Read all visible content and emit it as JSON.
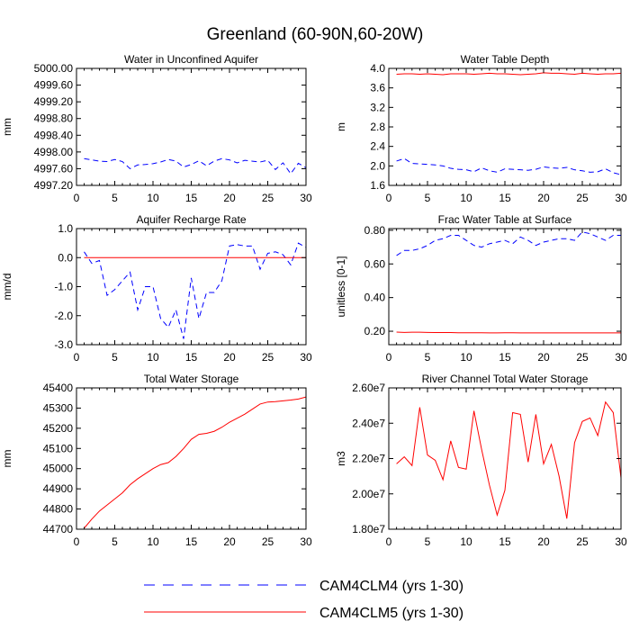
{
  "figure": {
    "title": "Greenland (60-90N,60-20W)"
  },
  "legend": {
    "entries": [
      {
        "label": "CAM4CLM4 (yrs 1-30)",
        "color": "#0000ff",
        "dash": true
      },
      {
        "label": "CAM4CLM5 (yrs 1-30)",
        "color": "#ff0000",
        "dash": false
      }
    ]
  },
  "chart_data": [
    {
      "type": "line",
      "title": "Water in Unconfined Aquifer",
      "ylabel": "mm",
      "xlim": [
        0,
        30
      ],
      "ylim": [
        4997.2,
        5000.0
      ],
      "xticks": [
        0,
        5,
        10,
        15,
        20,
        25,
        30
      ],
      "yticks": [
        4997.2,
        4997.6,
        4998.0,
        4998.4,
        4998.8,
        4999.2,
        4999.6,
        5000.0
      ],
      "ytick_labels": [
        "4997.20",
        "4997.60",
        "4998.00",
        "4998.40",
        "4998.80",
        "4999.20",
        "4999.60",
        "5000.00"
      ],
      "series": [
        {
          "name": "CAM4CLM4 (yrs 1-30)",
          "color": "#0000ff",
          "dash": true,
          "x": [
            1,
            2,
            3,
            4,
            5,
            6,
            7,
            8,
            9,
            10,
            11,
            12,
            13,
            14,
            15,
            16,
            17,
            18,
            19,
            20,
            21,
            22,
            23,
            24,
            25,
            26,
            27,
            28,
            29,
            30
          ],
          "values": [
            4997.84,
            4997.81,
            4997.78,
            4997.77,
            4997.82,
            4997.77,
            4997.6,
            4997.69,
            4997.7,
            4997.72,
            4997.76,
            4997.82,
            4997.78,
            4997.64,
            4997.7,
            4997.79,
            4997.67,
            4997.78,
            4997.84,
            4997.81,
            4997.74,
            4997.8,
            4997.78,
            4997.76,
            4997.8,
            4997.58,
            4997.74,
            4997.48,
            4997.73,
            4997.62
          ]
        }
      ]
    },
    {
      "type": "line",
      "title": "Water Table Depth",
      "ylabel": "m",
      "xlim": [
        0,
        30
      ],
      "ylim": [
        1.6,
        4.0
      ],
      "xticks": [
        0,
        5,
        10,
        15,
        20,
        25,
        30
      ],
      "yticks": [
        1.6,
        2.0,
        2.4,
        2.8,
        3.2,
        3.6,
        4.0
      ],
      "ytick_labels": [
        "1.6",
        "2.0",
        "2.4",
        "2.8",
        "3.2",
        "3.6",
        "4.0"
      ],
      "series": [
        {
          "name": "CAM4CLM4 (yrs 1-30)",
          "color": "#0000ff",
          "dash": true,
          "x": [
            1,
            2,
            3,
            4,
            5,
            6,
            7,
            8,
            9,
            10,
            11,
            12,
            13,
            14,
            15,
            16,
            17,
            18,
            19,
            20,
            21,
            22,
            23,
            24,
            25,
            26,
            27,
            28,
            29,
            30
          ],
          "values": [
            2.1,
            2.15,
            2.05,
            2.04,
            2.03,
            2.02,
            2.0,
            1.95,
            1.93,
            1.92,
            1.88,
            1.96,
            1.9,
            1.87,
            1.94,
            1.93,
            1.92,
            1.91,
            1.93,
            1.98,
            1.96,
            1.95,
            1.97,
            1.92,
            1.9,
            1.87,
            1.88,
            1.94,
            1.86,
            1.82
          ]
        },
        {
          "name": "CAM4CLM5 (yrs 1-30)",
          "color": "#ff0000",
          "dash": false,
          "x": [
            1,
            2,
            3,
            4,
            5,
            6,
            7,
            8,
            9,
            10,
            11,
            12,
            13,
            14,
            15,
            16,
            17,
            18,
            19,
            20,
            21,
            22,
            23,
            24,
            25,
            26,
            27,
            28,
            29,
            30
          ],
          "values": [
            3.88,
            3.89,
            3.89,
            3.88,
            3.89,
            3.88,
            3.87,
            3.89,
            3.89,
            3.89,
            3.88,
            3.89,
            3.9,
            3.89,
            3.89,
            3.88,
            3.87,
            3.88,
            3.89,
            3.91,
            3.9,
            3.9,
            3.89,
            3.88,
            3.9,
            3.89,
            3.88,
            3.89,
            3.89,
            3.9
          ]
        }
      ]
    },
    {
      "type": "line",
      "title": "Aquifer Recharge Rate",
      "ylabel": "mm/d",
      "xlim": [
        0,
        30
      ],
      "ylim": [
        -3.0,
        1.0
      ],
      "xticks": [
        0,
        5,
        10,
        15,
        20,
        25,
        30
      ],
      "yticks": [
        -3.0,
        -2.0,
        -1.0,
        0.0,
        1.0
      ],
      "ytick_labels": [
        "-3.0",
        "-2.0",
        "-1.0",
        "0.0",
        "1.0"
      ],
      "series": [
        {
          "name": "CAM4CLM4 (yrs 1-30)",
          "color": "#0000ff",
          "dash": true,
          "x": [
            1,
            2,
            3,
            4,
            5,
            6,
            7,
            8,
            9,
            10,
            11,
            12,
            13,
            14,
            15,
            16,
            17,
            18,
            19,
            20,
            21,
            22,
            23,
            24,
            25,
            26,
            27,
            28,
            29,
            30
          ],
          "values": [
            0.2,
            -0.2,
            -0.1,
            -1.3,
            -1.1,
            -0.8,
            -0.5,
            -1.8,
            -1.0,
            -1.0,
            -2.1,
            -2.4,
            -1.8,
            -2.8,
            -0.7,
            -2.1,
            -1.2,
            -1.2,
            -0.8,
            0.4,
            0.45,
            0.4,
            0.4,
            -0.4,
            0.15,
            0.2,
            0.1,
            -0.25,
            0.5,
            0.35
          ]
        },
        {
          "name": "CAM4CLM5 (yrs 1-30)",
          "color": "#ff0000",
          "dash": false,
          "x": [
            1,
            30
          ],
          "values": [
            0.0,
            0.0
          ]
        }
      ]
    },
    {
      "type": "line",
      "title": "Frac Water Table at Surface",
      "ylabel": "unitless [0-1]",
      "xlim": [
        0,
        30
      ],
      "ylim": [
        0.12,
        0.81
      ],
      "xticks": [
        0,
        5,
        10,
        15,
        20,
        25,
        30
      ],
      "yticks": [
        0.2,
        0.4,
        0.6,
        0.8
      ],
      "ytick_labels": [
        "0.20",
        "0.40",
        "0.60",
        "0.80"
      ],
      "series": [
        {
          "name": "CAM4CLM4 (yrs 1-30)",
          "color": "#0000ff",
          "dash": true,
          "x": [
            1,
            2,
            3,
            4,
            5,
            6,
            7,
            8,
            9,
            10,
            11,
            12,
            13,
            14,
            15,
            16,
            17,
            18,
            19,
            20,
            21,
            22,
            23,
            24,
            25,
            26,
            27,
            28,
            29,
            30
          ],
          "values": [
            0.65,
            0.68,
            0.68,
            0.69,
            0.71,
            0.74,
            0.75,
            0.77,
            0.77,
            0.74,
            0.71,
            0.7,
            0.72,
            0.73,
            0.74,
            0.72,
            0.76,
            0.74,
            0.71,
            0.73,
            0.74,
            0.75,
            0.75,
            0.74,
            0.79,
            0.78,
            0.76,
            0.74,
            0.77,
            0.77
          ]
        },
        {
          "name": "CAM4CLM5 (yrs 1-30)",
          "color": "#ff0000",
          "dash": false,
          "x": [
            1,
            2,
            3,
            4,
            5,
            6,
            7,
            8,
            9,
            10,
            11,
            12,
            13,
            14,
            15,
            16,
            17,
            18,
            19,
            20,
            21,
            22,
            23,
            24,
            25,
            26,
            27,
            28,
            29,
            30
          ],
          "values": [
            0.195,
            0.193,
            0.194,
            0.194,
            0.193,
            0.192,
            0.192,
            0.192,
            0.191,
            0.191,
            0.191,
            0.191,
            0.19,
            0.19,
            0.191,
            0.191,
            0.19,
            0.19,
            0.19,
            0.19,
            0.19,
            0.19,
            0.19,
            0.19,
            0.19,
            0.19,
            0.19,
            0.19,
            0.19,
            0.19
          ]
        }
      ]
    },
    {
      "type": "line",
      "title": "Total Water Storage",
      "ylabel": "mm",
      "xlim": [
        0,
        30
      ],
      "ylim": [
        44700,
        45400
      ],
      "xticks": [
        0,
        5,
        10,
        15,
        20,
        25,
        30
      ],
      "yticks": [
        44700,
        44800,
        44900,
        45000,
        45100,
        45200,
        45300,
        45400
      ],
      "ytick_labels": [
        "44700",
        "44800",
        "44900",
        "45000",
        "45100",
        "45200",
        "45300",
        "45400"
      ],
      "series": [
        {
          "name": "CAM4CLM5 (yrs 1-30)",
          "color": "#ff0000",
          "dash": false,
          "x": [
            1,
            2,
            3,
            4,
            5,
            6,
            7,
            8,
            9,
            10,
            11,
            12,
            13,
            14,
            15,
            16,
            17,
            18,
            19,
            20,
            21,
            22,
            23,
            24,
            25,
            26,
            27,
            28,
            29,
            30
          ],
          "values": [
            44705,
            44750,
            44790,
            44820,
            44850,
            44880,
            44920,
            44950,
            44975,
            45000,
            45020,
            45030,
            45060,
            45100,
            45145,
            45170,
            45175,
            45185,
            45205,
            45230,
            45250,
            45270,
            45295,
            45320,
            45330,
            45332,
            45336,
            45340,
            45345,
            45355
          ]
        }
      ]
    },
    {
      "type": "line",
      "title": "River Channel Total Water Storage",
      "ylabel": "m3",
      "xlim": [
        0,
        30
      ],
      "ylim": [
        18000000,
        26000000
      ],
      "xticks": [
        0,
        5,
        10,
        15,
        20,
        25,
        30
      ],
      "yticks": [
        18000000,
        20000000,
        22000000,
        24000000,
        26000000
      ],
      "ytick_labels": [
        "1.80e7",
        "2.00e7",
        "2.20e7",
        "2.40e7",
        "2.60e7"
      ],
      "series": [
        {
          "name": "CAM4CLM5 (yrs 1-30)",
          "color": "#ff0000",
          "dash": false,
          "x": [
            1,
            2,
            3,
            4,
            5,
            6,
            7,
            8,
            9,
            10,
            11,
            12,
            13,
            14,
            15,
            16,
            17,
            18,
            19,
            20,
            21,
            22,
            23,
            24,
            25,
            26,
            27,
            28,
            29,
            30
          ],
          "values": [
            21700000,
            22100000,
            21600000,
            24900000,
            22200000,
            21900000,
            20800000,
            23000000,
            21500000,
            21400000,
            24700000,
            22500000,
            20500000,
            18800000,
            20200000,
            24600000,
            24500000,
            21800000,
            24500000,
            21700000,
            22800000,
            21000000,
            18600000,
            22900000,
            24100000,
            24300000,
            23300000,
            25200000,
            24600000,
            20900000
          ]
        }
      ]
    }
  ]
}
